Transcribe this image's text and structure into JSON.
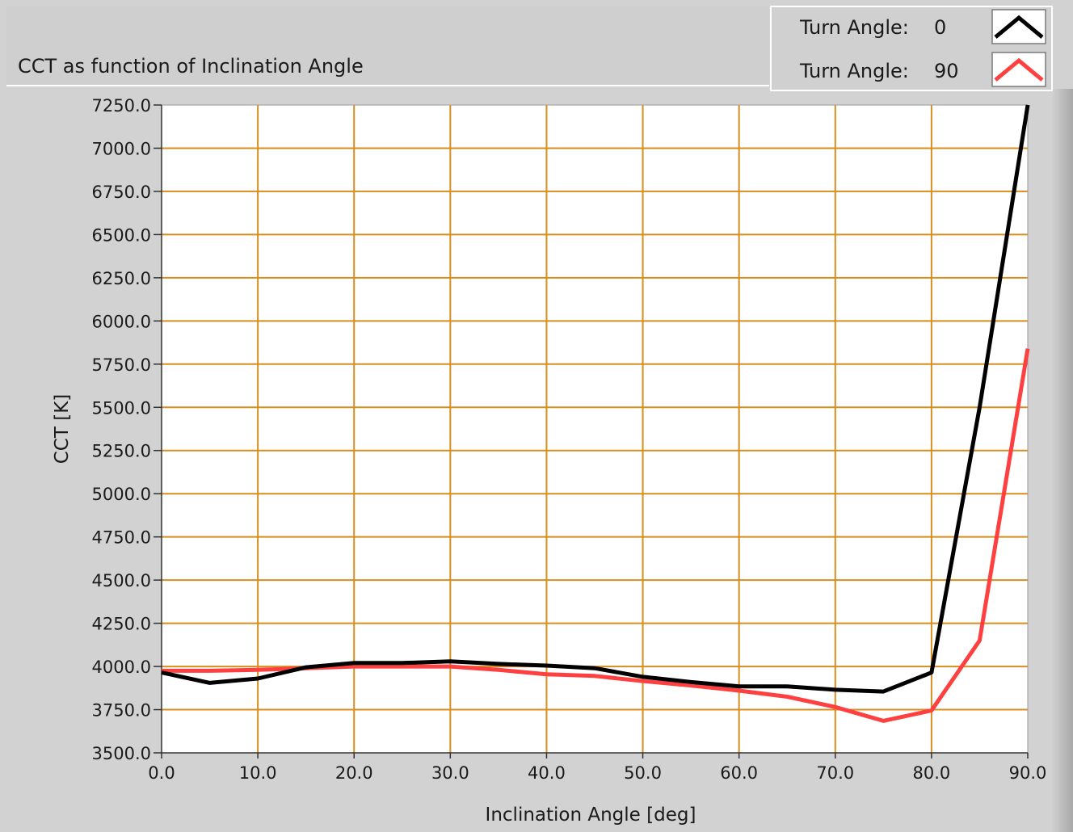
{
  "chart_data": {
    "type": "line",
    "title": "CCT as function of Inclination Angle",
    "xlabel": "Inclination Angle [deg]",
    "ylabel": "CCT [K]",
    "xlim": [
      0,
      90
    ],
    "ylim": [
      3500,
      7250
    ],
    "x_ticks": [
      "0.0",
      "10.0",
      "20.0",
      "30.0",
      "40.0",
      "50.0",
      "60.0",
      "70.0",
      "80.0",
      "90.0"
    ],
    "y_ticks": [
      "7250.0",
      "7000.0",
      "6750.0",
      "6500.0",
      "6250.0",
      "6000.0",
      "5750.0",
      "5500.0",
      "5250.0",
      "5000.0",
      "4750.0",
      "4500.0",
      "4250.0",
      "4000.0",
      "3750.0",
      "3500.0"
    ],
    "grid": true,
    "legend_position": "top-right",
    "series": [
      {
        "name": "Turn Angle:",
        "legend_value": "0",
        "color": "#000000",
        "x": [
          0,
          5,
          10,
          15,
          20,
          25,
          30,
          35,
          40,
          45,
          50,
          55,
          60,
          65,
          70,
          75,
          80,
          85,
          90
        ],
        "y": [
          3965,
          3905,
          3930,
          3995,
          4020,
          4020,
          4030,
          4015,
          4005,
          3990,
          3940,
          3910,
          3885,
          3885,
          3865,
          3855,
          3965,
          5500,
          7250
        ]
      },
      {
        "name": "Turn Angle:",
        "legend_value": "90",
        "color": "#ff4040",
        "x": [
          0,
          5,
          10,
          15,
          20,
          25,
          30,
          35,
          40,
          45,
          50,
          55,
          60,
          65,
          70,
          75,
          80,
          85,
          90
        ],
        "y": [
          3975,
          3975,
          3980,
          3990,
          4000,
          4000,
          4000,
          3980,
          3955,
          3945,
          3915,
          3890,
          3860,
          3825,
          3765,
          3685,
          3745,
          4150,
          5840
        ]
      }
    ]
  },
  "colors": {
    "panel_bg": "#d2d2d2",
    "plot_bg": "#ffffff",
    "grid": "#d78e1f",
    "title_bar": "#cfcfcf",
    "legend_bg": "#d0d0d0"
  }
}
